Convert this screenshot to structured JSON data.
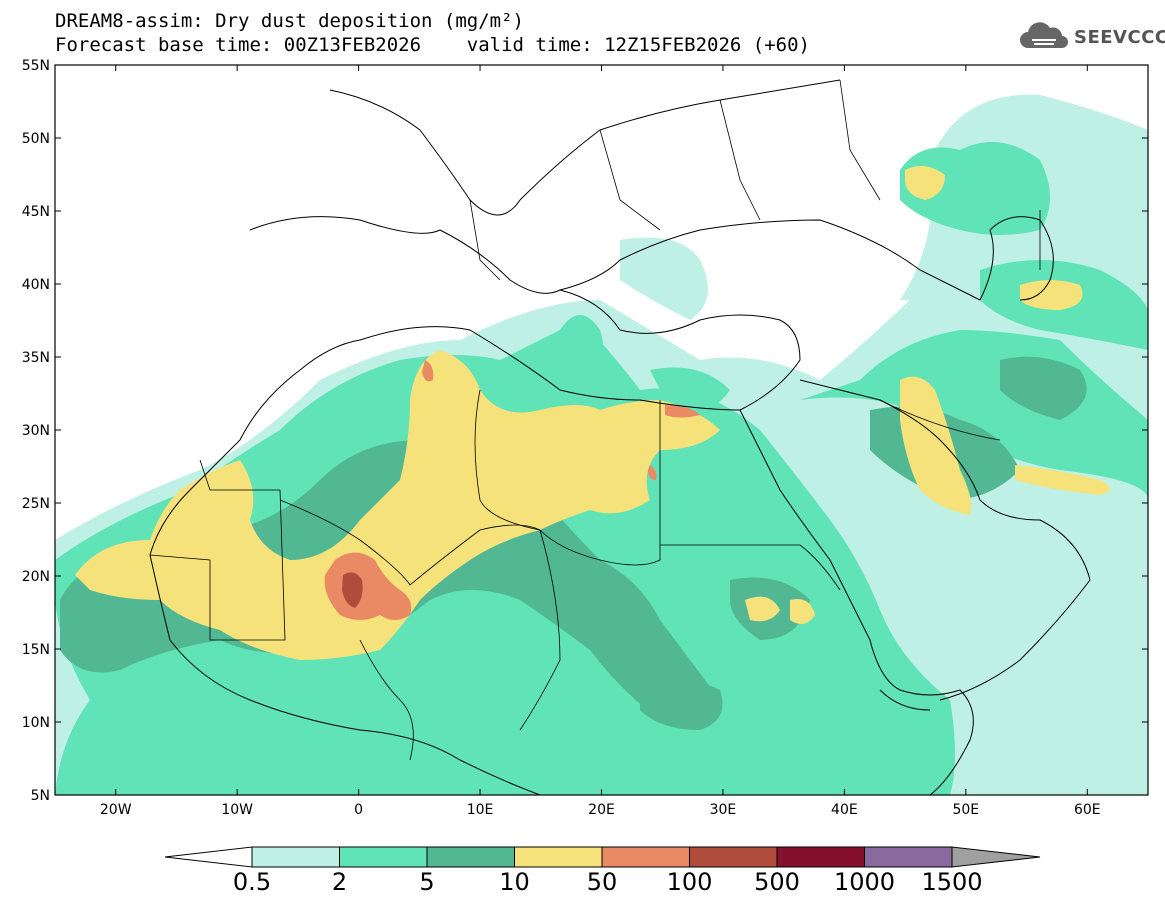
{
  "title": {
    "line1": "DREAM8-assim: Dry dust deposition (mg/m²)",
    "line2": "Forecast base time: 00Z13FEB2026    valid time: 12Z15FEB2026 (+60)"
  },
  "logo": {
    "text": "SEEVCCC",
    "icon": "cloud-icon"
  },
  "map": {
    "lon_range": [
      -25,
      65
    ],
    "lat_range": [
      5,
      55
    ],
    "lat_labels": [
      "55N",
      "50N",
      "45N",
      "40N",
      "35N",
      "30N",
      "25N",
      "20N",
      "15N",
      "10N",
      "5N"
    ],
    "lat_values": [
      55,
      50,
      45,
      40,
      35,
      30,
      25,
      20,
      15,
      10,
      5
    ],
    "lon_labels": [
      "20W",
      "10W",
      "0",
      "10E",
      "20E",
      "30E",
      "40E",
      "50E",
      "60E"
    ],
    "lon_values": [
      -20,
      -10,
      0,
      10,
      20,
      30,
      40,
      50,
      60
    ],
    "colors": {
      "c0_5": "#bff0e6",
      "c2": "#5fe3b7",
      "c5": "#52b894",
      "c10": "#f5e27a",
      "c50": "#e98a64",
      "c100": "#b04c3c",
      "c500": "#84102c",
      "c1000": "#8a6a9e",
      "c1500": "#a0a0a0"
    }
  },
  "colorbar": {
    "labels": [
      "0.5",
      "2",
      "5",
      "10",
      "50",
      "100",
      "500",
      "1000",
      "1500"
    ],
    "colors": [
      "#bff0e6",
      "#5fe3b7",
      "#52b894",
      "#f5e27a",
      "#e98a64",
      "#b04c3c",
      "#84102c",
      "#8a6a9e"
    ],
    "over_color": "#a0a0a0",
    "under_color": "#ffffff"
  }
}
